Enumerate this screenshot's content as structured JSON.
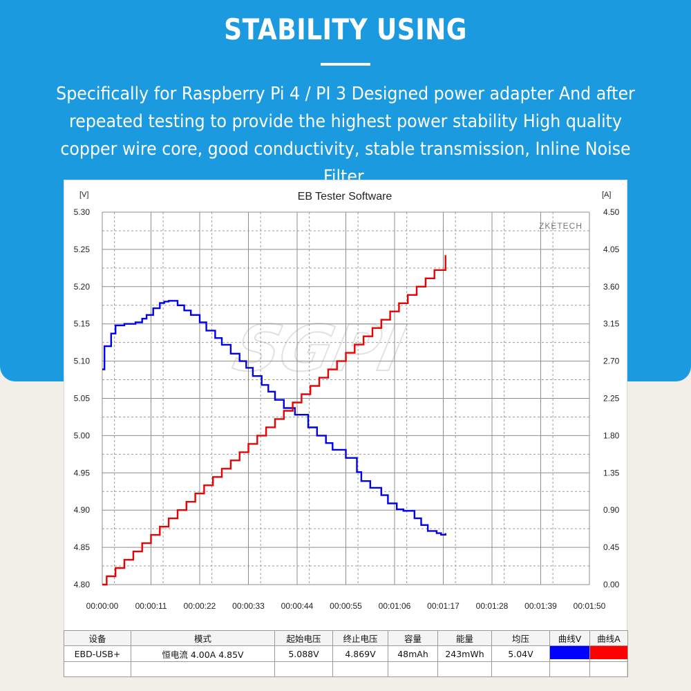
{
  "banner": {
    "title": "STABILITY USING",
    "description": "Specifically for Raspberry Pi 4 / PI 3 Designed power adapter And after repeated testing to provide the highest power stability High quality copper wire core, good conductivity, stable transmission, Inline Noise Filter."
  },
  "software_title": "EB Tester Software",
  "zketech_label": "ZKETECH",
  "chart_data": {
    "type": "line",
    "title": "EB Tester Software",
    "left_unit": "[V]",
    "right_unit": "[A]",
    "xlim": [
      "00:00:00",
      "00:01:50"
    ],
    "x_ticks": [
      "00:00:00",
      "00:00:11",
      "00:00:22",
      "00:00:33",
      "00:00:44",
      "00:00:55",
      "00:01:06",
      "00:01:17",
      "00:01:28",
      "00:01:39",
      "00:01:50"
    ],
    "ylim_left": [
      4.8,
      5.3
    ],
    "ylim_right": [
      0.0,
      4.5
    ],
    "y_ticks_left": [
      "5.30",
      "5.25",
      "5.20",
      "5.15",
      "5.10",
      "5.05",
      "5.00",
      "4.95",
      "4.90",
      "4.85",
      "4.80"
    ],
    "y_ticks_right": [
      "4.50",
      "4.05",
      "3.60",
      "3.15",
      "2.70",
      "2.25",
      "1.80",
      "1.35",
      "0.90",
      "0.45",
      "0.00"
    ],
    "grid": true,
    "step": true,
    "series": [
      {
        "name": "曲线V",
        "color": "#0000ee",
        "axis": "left",
        "x": [
          0,
          0.5,
          2,
          3,
          5,
          7.5,
          9,
          10,
          11.5,
          13,
          14,
          15,
          17,
          18.5,
          20,
          22,
          23.5,
          25.5,
          27,
          29,
          31,
          32.5,
          34,
          36,
          37.5,
          39,
          41,
          43.5,
          46.5,
          48.5,
          50.5,
          52,
          55,
          57.5,
          58.5,
          60.5,
          63,
          64.5,
          66.5,
          68,
          70.5,
          72,
          73.5,
          75.5,
          76.5,
          77.5
        ],
        "values": [
          5.089,
          5.12,
          5.137,
          5.148,
          5.15,
          5.152,
          5.157,
          5.162,
          5.171,
          5.178,
          5.18,
          5.181,
          5.175,
          5.168,
          5.162,
          5.152,
          5.141,
          5.131,
          5.122,
          5.11,
          5.1,
          5.091,
          5.08,
          5.068,
          5.059,
          5.048,
          5.037,
          5.028,
          5.011,
          5.0,
          4.99,
          4.981,
          4.97,
          4.951,
          4.939,
          4.93,
          4.92,
          4.909,
          4.901,
          4.899,
          4.889,
          4.88,
          4.872,
          4.869,
          4.867,
          4.869
        ]
      },
      {
        "name": "曲线A",
        "color": "#ee0000",
        "axis": "right",
        "x": [
          0,
          1,
          3,
          5,
          7,
          9,
          11,
          13,
          15,
          17,
          19,
          21,
          23,
          25,
          27,
          29,
          31,
          33,
          35,
          37,
          39,
          41,
          43,
          45,
          47,
          49,
          51,
          53,
          55,
          57,
          59,
          61,
          63,
          65,
          67,
          69,
          71,
          73,
          75,
          77.5
        ],
        "values": [
          0.0,
          0.1,
          0.2,
          0.3,
          0.4,
          0.5,
          0.6,
          0.7,
          0.8,
          0.9,
          1.0,
          1.1,
          1.2,
          1.3,
          1.4,
          1.5,
          1.6,
          1.7,
          1.8,
          1.9,
          2.0,
          2.1,
          2.2,
          2.3,
          2.4,
          2.5,
          2.6,
          2.7,
          2.8,
          2.9,
          3.0,
          3.1,
          3.2,
          3.3,
          3.4,
          3.5,
          3.6,
          3.7,
          3.8,
          3.98
        ]
      }
    ]
  },
  "info_table": {
    "headers": [
      "设备",
      "模式",
      "起始电压",
      "终止电压",
      "容量",
      "能量",
      "均压",
      "曲线V",
      "曲线A"
    ],
    "device": "EBD-USB+",
    "mode": "恒电流  4.00A  4.85V",
    "start_voltage": "5.088V",
    "end_voltage": "4.869V",
    "capacity": "48mAh",
    "energy": "243mWh",
    "avg_voltage": "5.04V",
    "curve_v_color": "#0000ff",
    "curve_a_color": "#ff0000"
  }
}
